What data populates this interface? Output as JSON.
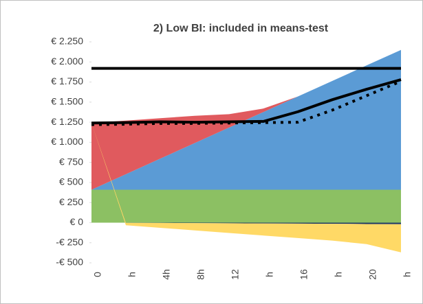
{
  "chart_data": {
    "type": "area",
    "title": "2) Low BI: included in means-test",
    "categories": [
      "0",
      "h",
      "4h",
      "8h",
      "12",
      "h",
      "16",
      "h",
      "20",
      "h"
    ],
    "ylim": [
      -500,
      2250
    ],
    "yticks": [
      {
        "value": -500,
        "label": "-€ 500"
      },
      {
        "value": -250,
        "label": "-€ 250"
      },
      {
        "value": 0,
        "label": "€ 0"
      },
      {
        "value": 250,
        "label": "€ 250"
      },
      {
        "value": 500,
        "label": "€ 500"
      },
      {
        "value": 750,
        "label": "€ 750"
      },
      {
        "value": 1000,
        "label": "€ 1.000"
      },
      {
        "value": 1250,
        "label": "€ 1.250"
      },
      {
        "value": 1500,
        "label": "€ 1.500"
      },
      {
        "value": 1750,
        "label": "€ 1.750"
      },
      {
        "value": 2000,
        "label": "€ 2.000"
      },
      {
        "value": 2250,
        "label": "€ 2.250"
      }
    ],
    "series": [
      {
        "type": "area",
        "color": "#8cc063",
        "values": [
          410,
          410,
          410,
          410,
          410,
          410,
          410,
          410,
          410,
          410
        ]
      },
      {
        "type": "area",
        "color": "#5b9bd5",
        "values": [
          0,
          193,
          387,
          580,
          773,
          967,
          1160,
          1353,
          1547,
          1740
        ]
      },
      {
        "type": "area",
        "color": "#e05a5e",
        "values": [
          830,
          667,
          503,
          340,
          167,
          43,
          0,
          0,
          0,
          0
        ]
      },
      {
        "type": "area",
        "color": "#1f3864",
        "values": [
          0,
          -2,
          -4,
          -6,
          -8,
          -10,
          -12,
          -14,
          -17,
          -20
        ]
      },
      {
        "type": "area",
        "color": "#ffd966",
        "values": [
          0,
          -30,
          -60,
          -90,
          -120,
          -150,
          -180,
          -210,
          -250,
          -350
        ]
      },
      {
        "type": "line",
        "color": "#000000",
        "values": [
          1920,
          1920,
          1920,
          1920,
          1920,
          1920,
          1920,
          1920,
          1920,
          1920
        ]
      },
      {
        "type": "line",
        "color": "#000000",
        "dashed": true,
        "values": [
          1220,
          1225,
          1235,
          1235,
          1240,
          1245,
          1250,
          1400,
          1580,
          1760
        ]
      },
      {
        "type": "line",
        "color": "#000000",
        "values": [
          1240,
          1245,
          1255,
          1250,
          1255,
          1260,
          1380,
          1530,
          1660,
          1780
        ]
      }
    ]
  }
}
